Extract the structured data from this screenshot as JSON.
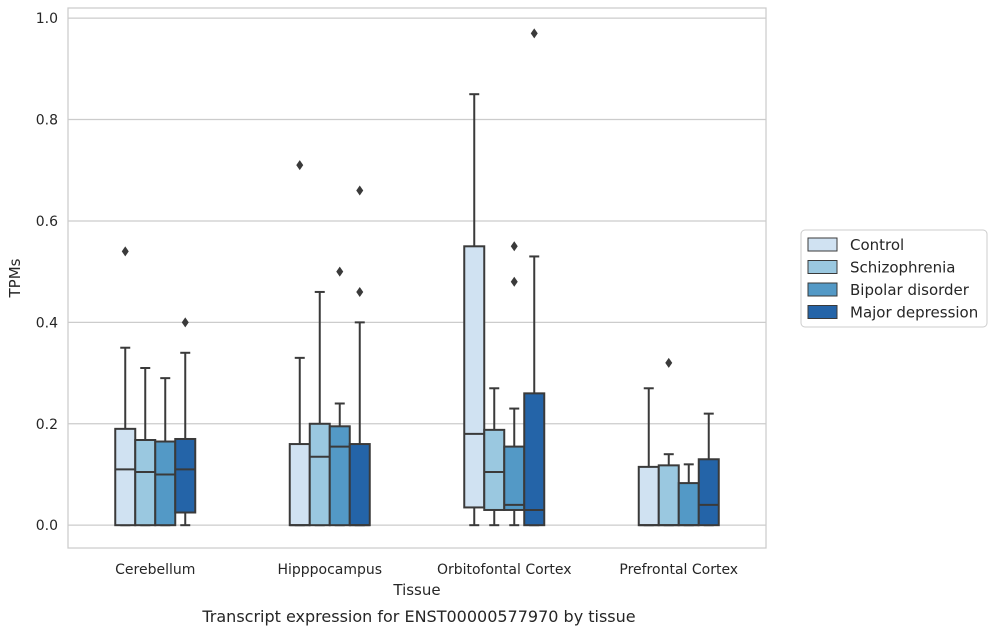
{
  "caption": "Transcript expression for ENST00000577970 by tissue",
  "chart_data": {
    "type": "boxplot",
    "xlabel": "Tissue",
    "ylabel": "TPMs",
    "ylim": [
      -0.045,
      1.02
    ],
    "yticks": [
      "0.0",
      "0.2",
      "0.4",
      "0.6",
      "0.8",
      "1.0"
    ],
    "grid": true,
    "legend_position": "right",
    "categories": [
      "Cerebellum",
      "Hipppocampus",
      "Orbitofontal Cortex",
      "Prefrontal Cortex"
    ],
    "series": [
      {
        "name": "Control",
        "color": "#d0e2f2",
        "boxes": [
          {
            "q1": 0.0,
            "median": 0.11,
            "q3": 0.19,
            "whisker_low": 0.0,
            "whisker_high": 0.35,
            "outliers": [
              0.54
            ]
          },
          {
            "q1": 0.0,
            "median": 0.0,
            "q3": 0.16,
            "whisker_low": 0.0,
            "whisker_high": 0.33,
            "outliers": [
              0.71
            ]
          },
          {
            "q1": 0.035,
            "median": 0.18,
            "q3": 0.55,
            "whisker_low": 0.0,
            "whisker_high": 0.85,
            "outliers": []
          },
          {
            "q1": 0.0,
            "median": 0.0,
            "q3": 0.115,
            "whisker_low": 0.0,
            "whisker_high": 0.27,
            "outliers": []
          }
        ]
      },
      {
        "name": "Schizophrenia",
        "color": "#9ac8e0",
        "boxes": [
          {
            "q1": 0.0,
            "median": 0.105,
            "q3": 0.168,
            "whisker_low": 0.0,
            "whisker_high": 0.31,
            "outliers": []
          },
          {
            "q1": 0.0,
            "median": 0.135,
            "q3": 0.2,
            "whisker_low": 0.0,
            "whisker_high": 0.46,
            "outliers": []
          },
          {
            "q1": 0.03,
            "median": 0.105,
            "q3": 0.188,
            "whisker_low": 0.0,
            "whisker_high": 0.27,
            "outliers": []
          },
          {
            "q1": 0.0,
            "median": 0.0,
            "q3": 0.118,
            "whisker_low": 0.0,
            "whisker_high": 0.14,
            "outliers": [
              0.32
            ]
          }
        ]
      },
      {
        "name": "Bipolar disorder",
        "color": "#5399c6",
        "boxes": [
          {
            "q1": 0.0,
            "median": 0.1,
            "q3": 0.165,
            "whisker_low": 0.0,
            "whisker_high": 0.29,
            "outliers": []
          },
          {
            "q1": 0.0,
            "median": 0.155,
            "q3": 0.195,
            "whisker_low": 0.0,
            "whisker_high": 0.24,
            "outliers": [
              0.5
            ]
          },
          {
            "q1": 0.03,
            "median": 0.04,
            "q3": 0.155,
            "whisker_low": 0.0,
            "whisker_high": 0.23,
            "outliers": [
              0.55,
              0.48
            ]
          },
          {
            "q1": 0.0,
            "median": 0.0,
            "q3": 0.083,
            "whisker_low": 0.0,
            "whisker_high": 0.12,
            "outliers": []
          }
        ]
      },
      {
        "name": "Major depression",
        "color": "#2464a8",
        "boxes": [
          {
            "q1": 0.025,
            "median": 0.11,
            "q3": 0.17,
            "whisker_low": 0.0,
            "whisker_high": 0.34,
            "outliers": [
              0.4
            ]
          },
          {
            "q1": 0.0,
            "median": 0.0,
            "q3": 0.16,
            "whisker_low": 0.0,
            "whisker_high": 0.4,
            "outliers": [
              0.66,
              0.46
            ]
          },
          {
            "q1": 0.0,
            "median": 0.03,
            "q3": 0.26,
            "whisker_low": 0.0,
            "whisker_high": 0.53,
            "outliers": [
              0.97
            ]
          },
          {
            "q1": 0.0,
            "median": 0.04,
            "q3": 0.13,
            "whisker_low": 0.0,
            "whisker_high": 0.22,
            "outliers": []
          }
        ]
      }
    ]
  }
}
